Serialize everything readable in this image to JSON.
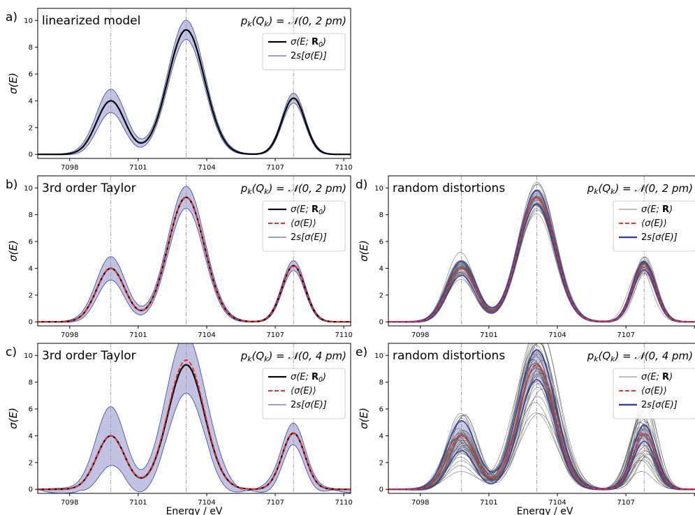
{
  "chart_data": {
    "type": "line",
    "x_axis": {
      "xlabel": "Energy / eV",
      "xlim": [
        7096.6,
        7110.3
      ],
      "xticks": [
        7098,
        7101,
        7104,
        7107,
        7110
      ],
      "tick_labels": [
        "7098",
        "7101",
        "7104",
        "7107",
        "7110"
      ]
    },
    "y_axis": {
      "ylabel": "σ(E)",
      "ylim": [
        -0.3,
        10.9
      ],
      "yticks": [
        0,
        2,
        4,
        6,
        8,
        10
      ],
      "tick_labels": [
        "0",
        "2",
        "4",
        "6",
        "8",
        "10"
      ]
    },
    "reference_lines_x": [
      7099.8,
      7103.1,
      7107.8
    ],
    "peaks": [
      {
        "center": 7099.8,
        "height": 4.0
      },
      {
        "center": 7103.1,
        "height": 9.3
      },
      {
        "center": 7107.8,
        "height": 4.2
      }
    ],
    "colors": {
      "reference": "#000000",
      "mean": "#e8302f",
      "band_fill": "#b7b9dd",
      "band_edge": "#3a42a0",
      "sample": "#555555",
      "gridline": "#9a9a9a"
    },
    "panels": [
      {
        "letter": "a)",
        "title": "linearized model",
        "condition": "p_k(Q_k) = 𝒩(0, 2 pm)",
        "legend_location": "upper right",
        "legend": [
          "σ(E; R₀)",
          "2s[σ(E)]"
        ],
        "band_halfwidth_at_peaks": [
          0.85,
          0.7,
          0.35
        ],
        "mean_shift": [
          0,
          0,
          0
        ],
        "has_mean": false,
        "has_samples": false
      },
      {
        "letter": "b)",
        "title": "3rd order Taylor",
        "condition": "p_k(Q_k) = 𝒩(0, 2 pm)",
        "legend_location": "upper right",
        "legend": [
          "σ(E; R₀)",
          "⟨σ(E)⟩",
          "2s[σ(E)]"
        ],
        "band_halfwidth_at_peaks": [
          0.85,
          0.8,
          0.35
        ],
        "mean_shift": [
          0,
          0,
          0
        ],
        "has_mean": true,
        "has_samples": false
      },
      {
        "letter": "c)",
        "title": "3rd order Taylor",
        "condition": "p_k(Q_k) = 𝒩(0, 4 pm)",
        "legend_location": "upper right",
        "legend": [
          "σ(E; R₀)",
          "⟨σ(E)⟩",
          "2s[σ(E)]"
        ],
        "band_halfwidth_at_peaks": [
          2.0,
          2.2,
          0.8
        ],
        "mean_shift": [
          0,
          0.35,
          0
        ],
        "has_mean": true,
        "has_samples": false
      },
      {
        "letter": "d)",
        "title": "random distortions",
        "condition": "p_k(Q_k) = 𝒩(0, 2 pm)",
        "legend_location": "upper right",
        "legend": [
          "σ(E; R)",
          "⟨σ(E)⟩",
          "2s[σ(E)]"
        ],
        "band_halfwidth_at_peaks": [
          0.5,
          0.5,
          0.3
        ],
        "mean_shift": [
          0,
          0,
          0
        ],
        "has_mean": true,
        "has_samples": true,
        "sample_count": 30,
        "sample_spread": 0.12
      },
      {
        "letter": "e)",
        "title": "random distortions",
        "condition": "p_k(Q_k) = 𝒩(0, 4 pm)",
        "legend_location": "upper right",
        "legend": [
          "σ(E; R)",
          "⟨σ(E)⟩",
          "2s[σ(E)]"
        ],
        "band_halfwidth_at_peaks": [
          1.1,
          1.1,
          0.6
        ],
        "mean_shift": [
          0,
          0,
          0
        ],
        "has_mean": true,
        "has_samples": true,
        "sample_count": 40,
        "sample_spread": 0.3
      }
    ]
  }
}
